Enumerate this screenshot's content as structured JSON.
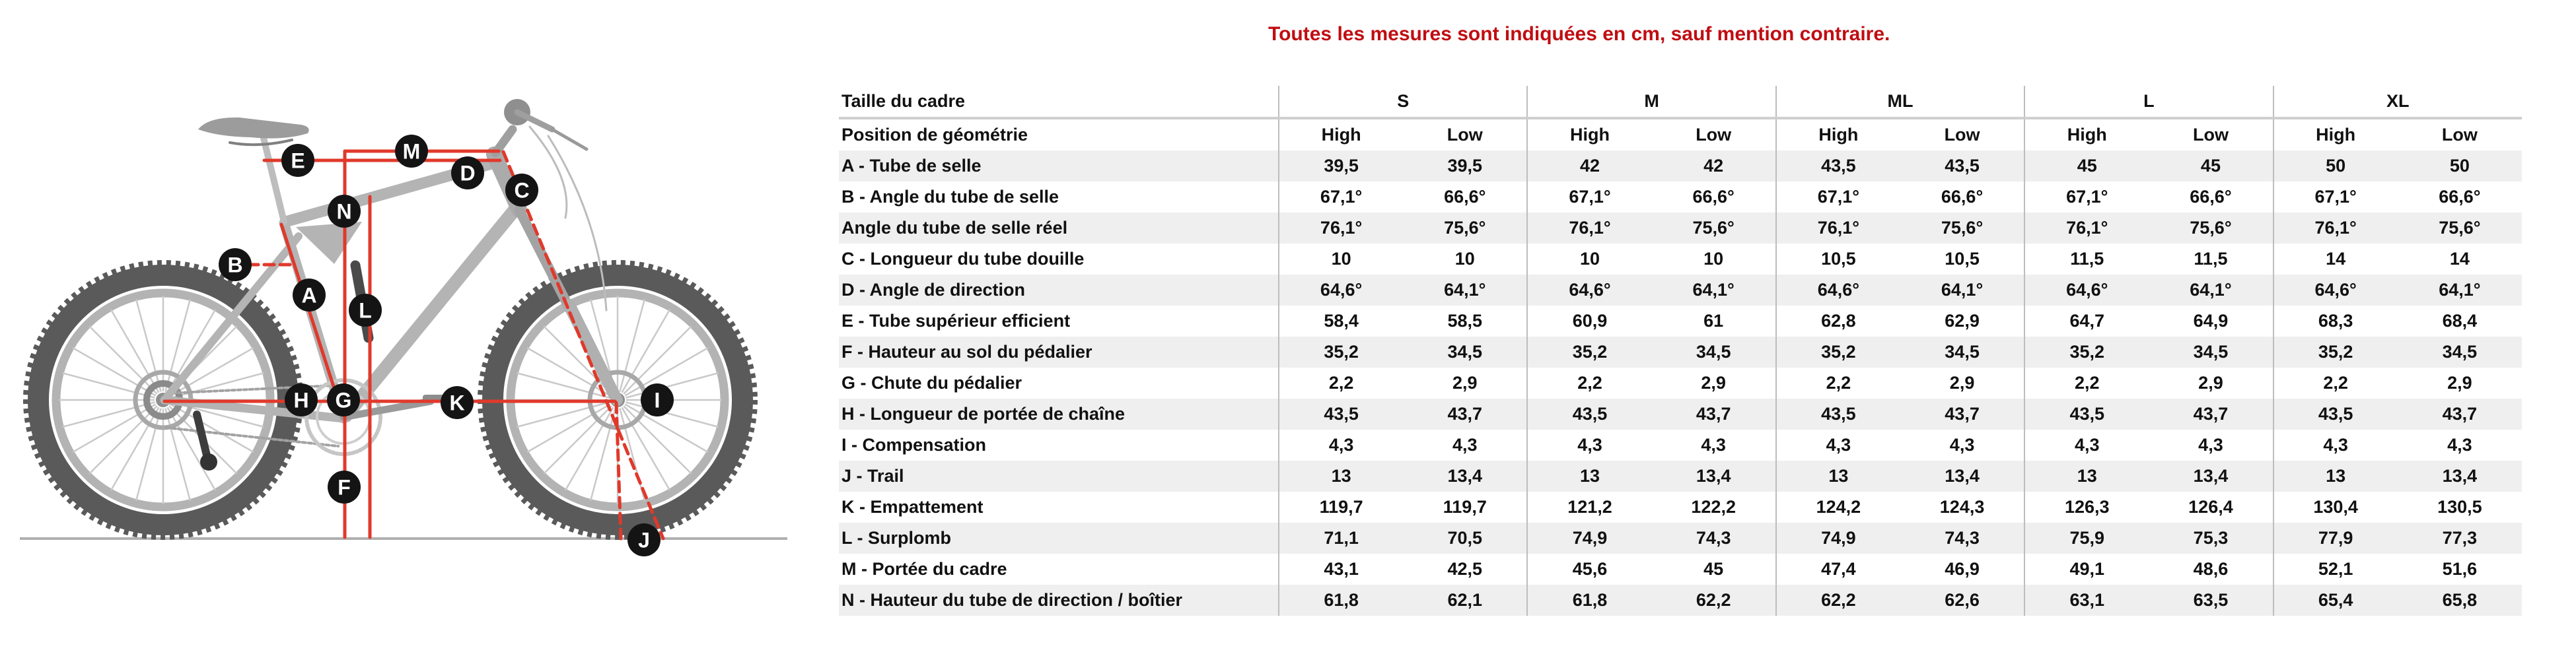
{
  "note": {
    "text": "Toutes les mesures sont indiquées en cm, sauf mention contraire."
  },
  "colors": {
    "note_red": "#c00d12",
    "diagram_red": "#e0392b",
    "badge_black": "#141414",
    "stripe_gray": "#efefef",
    "line_gray": "#bdbdbd"
  },
  "bike": {
    "labels": [
      "A",
      "B",
      "C",
      "D",
      "E",
      "F",
      "G",
      "H",
      "I",
      "J",
      "K",
      "L",
      "M",
      "N"
    ]
  },
  "table": {
    "size_header_label": "Taille du cadre",
    "position_header_label": "Position de géométrie",
    "sizes": [
      "S",
      "M",
      "ML",
      "L",
      "XL"
    ],
    "position_options": [
      "High",
      "Low"
    ],
    "rows": [
      {
        "label": "A - Tube de selle",
        "values": [
          "39,5",
          "39,5",
          "42",
          "42",
          "43,5",
          "43,5",
          "45",
          "45",
          "50",
          "50"
        ]
      },
      {
        "label": "B - Angle du tube de selle",
        "values": [
          "67,1°",
          "66,6°",
          "67,1°",
          "66,6°",
          "67,1°",
          "66,6°",
          "67,1°",
          "66,6°",
          "67,1°",
          "66,6°"
        ]
      },
      {
        "label": "Angle du tube de selle réel",
        "values": [
          "76,1°",
          "75,6°",
          "76,1°",
          "75,6°",
          "76,1°",
          "75,6°",
          "76,1°",
          "75,6°",
          "76,1°",
          "75,6°"
        ]
      },
      {
        "label": "C - Longueur du tube douille",
        "values": [
          "10",
          "10",
          "10",
          "10",
          "10,5",
          "10,5",
          "11,5",
          "11,5",
          "14",
          "14"
        ]
      },
      {
        "label": "D - Angle de direction",
        "values": [
          "64,6°",
          "64,1°",
          "64,6°",
          "64,1°",
          "64,6°",
          "64,1°",
          "64,6°",
          "64,1°",
          "64,6°",
          "64,1°"
        ]
      },
      {
        "label": "E - Tube supérieur efficient",
        "values": [
          "58,4",
          "58,5",
          "60,9",
          "61",
          "62,8",
          "62,9",
          "64,7",
          "64,9",
          "68,3",
          "68,4"
        ]
      },
      {
        "label": "F - Hauteur au sol du pédalier",
        "values": [
          "35,2",
          "34,5",
          "35,2",
          "34,5",
          "35,2",
          "34,5",
          "35,2",
          "34,5",
          "35,2",
          "34,5"
        ]
      },
      {
        "label": "G - Chute du pédalier",
        "values": [
          "2,2",
          "2,9",
          "2,2",
          "2,9",
          "2,2",
          "2,9",
          "2,2",
          "2,9",
          "2,2",
          "2,9"
        ]
      },
      {
        "label": "H - Longueur de portée de chaîne",
        "values": [
          "43,5",
          "43,7",
          "43,5",
          "43,7",
          "43,5",
          "43,7",
          "43,5",
          "43,7",
          "43,5",
          "43,7"
        ]
      },
      {
        "label": "I - Compensation",
        "values": [
          "4,3",
          "4,3",
          "4,3",
          "4,3",
          "4,3",
          "4,3",
          "4,3",
          "4,3",
          "4,3",
          "4,3"
        ]
      },
      {
        "label": "J - Trail",
        "values": [
          "13",
          "13,4",
          "13",
          "13,4",
          "13",
          "13,4",
          "13",
          "13,4",
          "13",
          "13,4"
        ]
      },
      {
        "label": "K - Empattement",
        "values": [
          "119,7",
          "119,7",
          "121,2",
          "122,2",
          "124,2",
          "124,3",
          "126,3",
          "126,4",
          "130,4",
          "130,5"
        ]
      },
      {
        "label": "L - Surplomb",
        "values": [
          "71,1",
          "70,5",
          "74,9",
          "74,3",
          "74,9",
          "74,3",
          "75,9",
          "75,3",
          "77,9",
          "77,3"
        ]
      },
      {
        "label": "M - Portée du cadre",
        "values": [
          "43,1",
          "42,5",
          "45,6",
          "45",
          "47,4",
          "46,9",
          "49,1",
          "48,6",
          "52,1",
          "51,6"
        ]
      },
      {
        "label": "N - Hauteur du tube de direction / boîtier",
        "values": [
          "61,8",
          "62,1",
          "61,8",
          "62,2",
          "62,2",
          "62,6",
          "63,1",
          "63,5",
          "65,4",
          "65,8"
        ]
      }
    ]
  }
}
